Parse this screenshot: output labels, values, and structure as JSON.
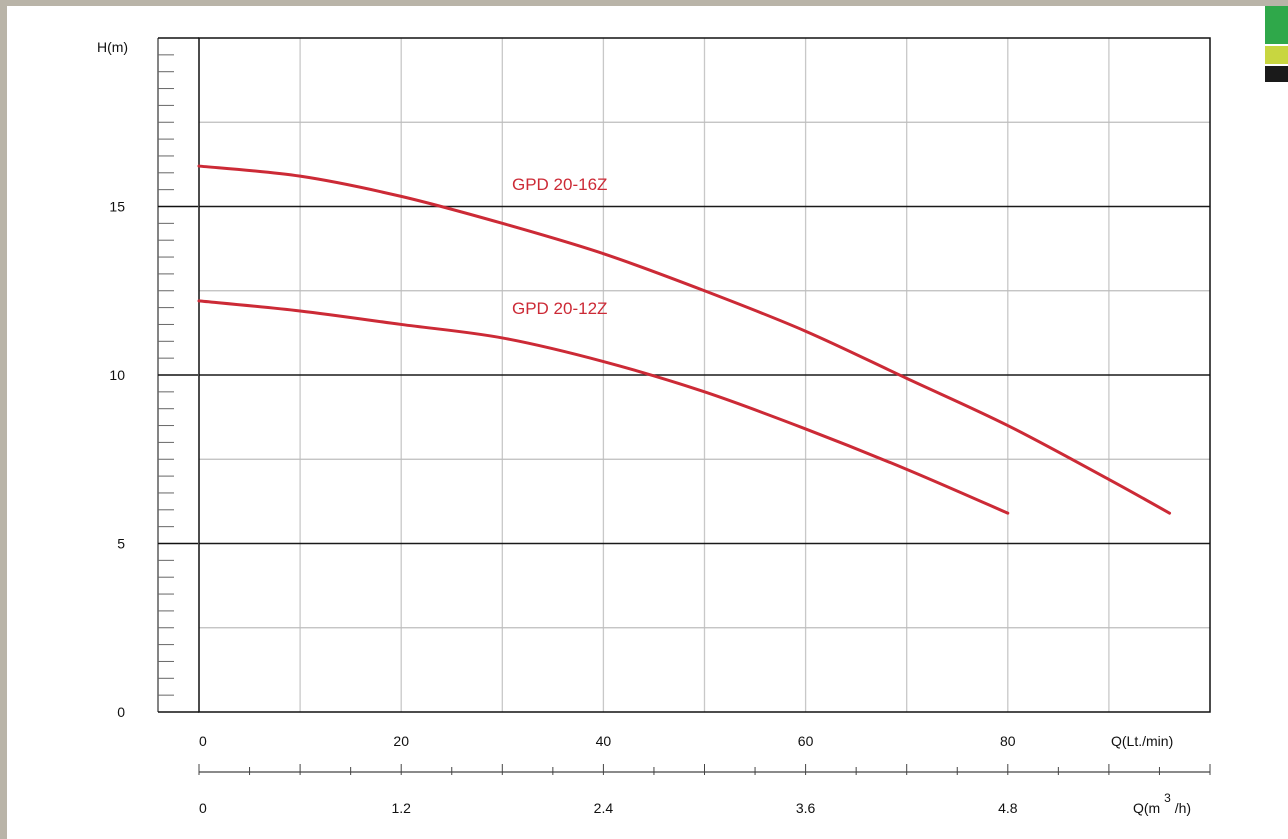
{
  "chart_data": {
    "type": "line",
    "ylabel": "H(m)",
    "xlabel": "Q(Lt./min)",
    "xlabel2_prefix": "Q(m",
    "xlabel2_sup": "3",
    "xlabel2_suffix": "/h)",
    "xlim": [
      0,
      100
    ],
    "ylim": [
      0,
      20
    ],
    "x_ticks": [
      0,
      20,
      40,
      60,
      80
    ],
    "x_tick_labels": [
      "0",
      "20",
      "40",
      "60",
      "80"
    ],
    "x2_ticks": [
      0,
      20,
      40,
      60,
      80
    ],
    "x2_tick_labels": [
      "0",
      "1.2",
      "2.4",
      "3.6",
      "4.8"
    ],
    "y_ticks": [
      0,
      5,
      10,
      15
    ],
    "y_tick_labels": [
      "0",
      "5",
      "10",
      "15"
    ],
    "grid": true,
    "series": [
      {
        "name": "GPD 20-16Z",
        "color": "#cc2a36",
        "x": [
          0,
          10,
          20,
          30,
          40,
          50,
          60,
          70,
          80,
          90,
          96
        ],
        "y": [
          16.2,
          15.9,
          15.3,
          14.5,
          13.6,
          12.5,
          11.3,
          9.9,
          8.5,
          6.9,
          5.9
        ]
      },
      {
        "name": "GPD 20-12Z",
        "color": "#cc2a36",
        "x": [
          0,
          10,
          20,
          30,
          40,
          50,
          60,
          70,
          80
        ],
        "y": [
          12.2,
          11.9,
          11.5,
          11.1,
          10.4,
          9.5,
          8.4,
          7.2,
          5.9
        ]
      }
    ]
  },
  "corner_swatches": [
    "#2fa84a",
    "#c8d640",
    "#1a1a1a"
  ]
}
